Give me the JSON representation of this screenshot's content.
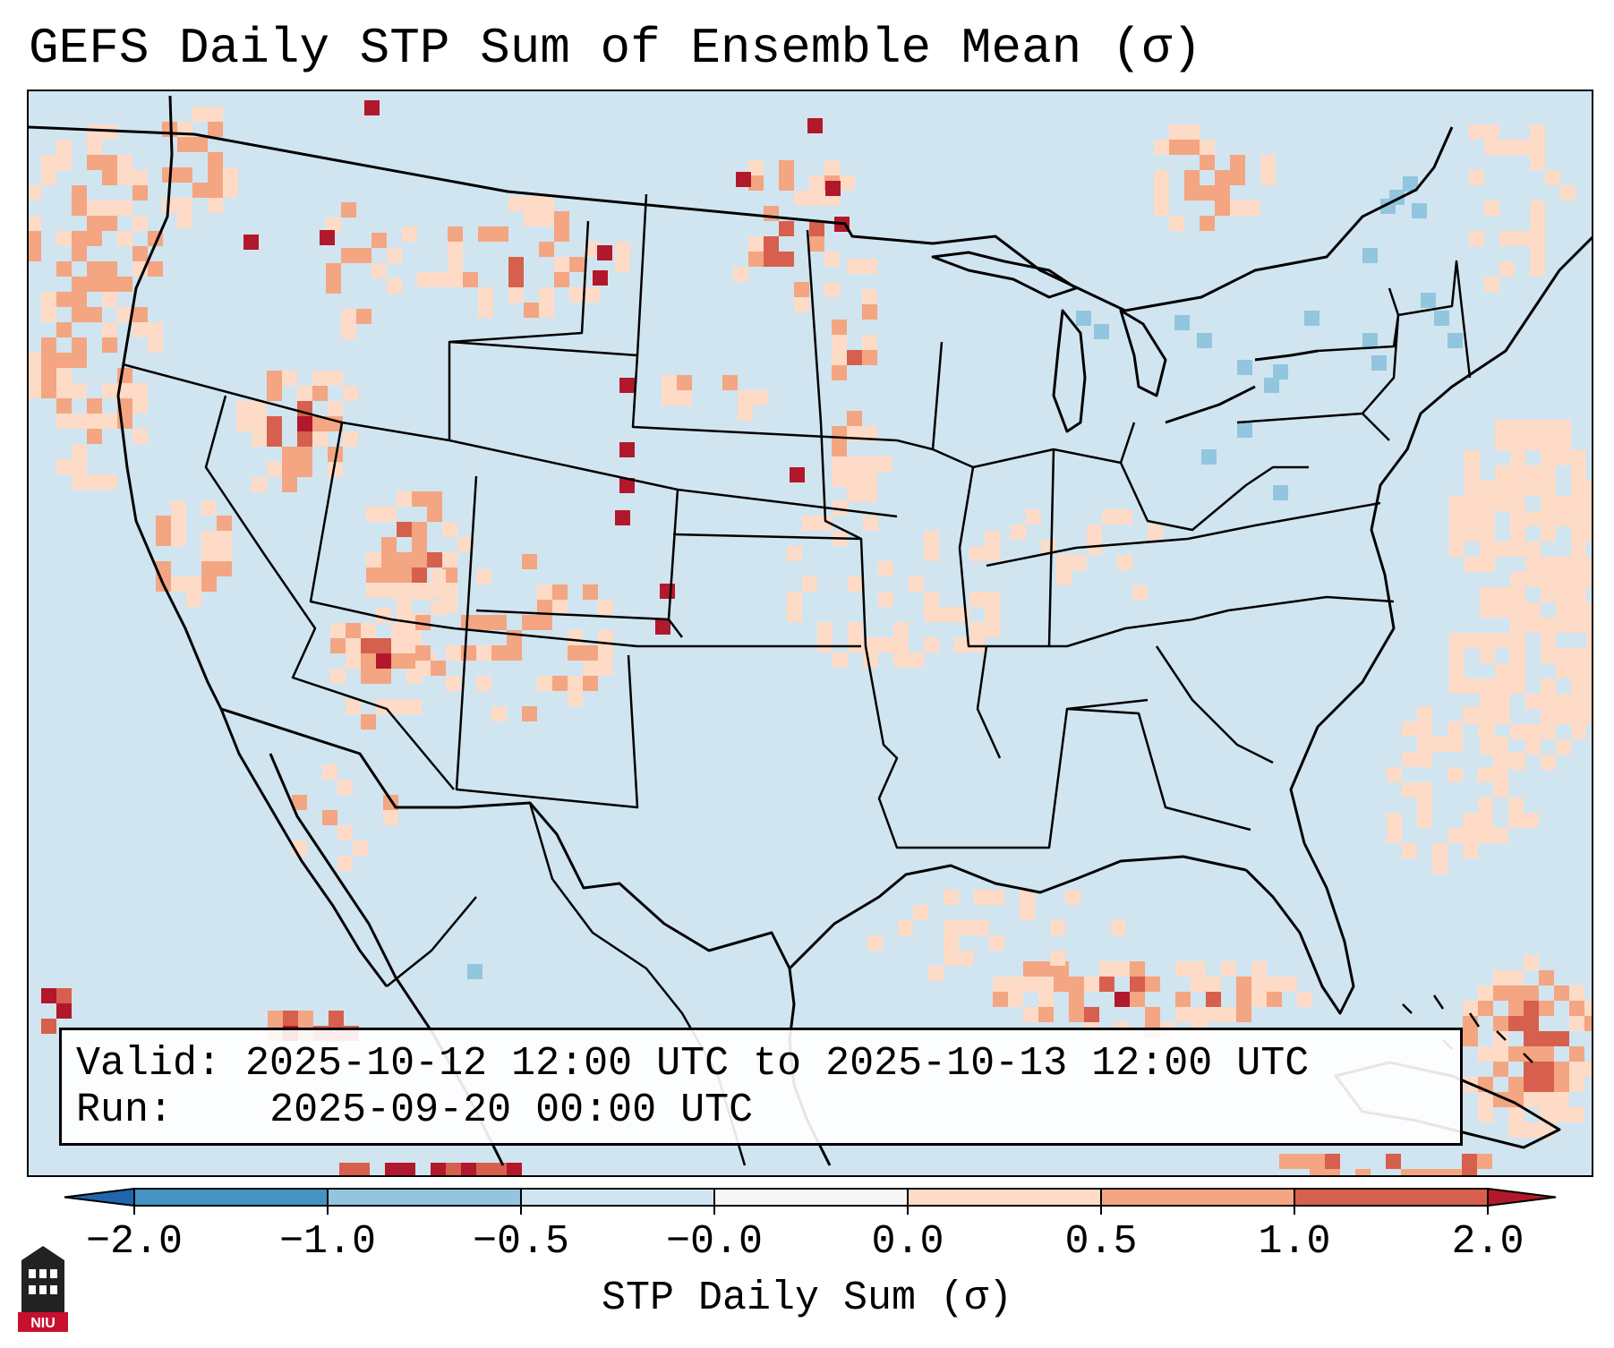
{
  "title": "GEFS Daily STP Sum of Ensemble Mean (σ)",
  "info": {
    "valid_label": "Valid:",
    "valid_value": "2025-10-12 12:00 UTC to 2025-10-13 12:00 UTC",
    "run_label": "Run:",
    "run_value": "2025-09-20 00:00 UTC"
  },
  "colorbar": {
    "label": "STP Daily Sum (σ)",
    "ticks": [
      "−2.0",
      "−1.0",
      "−0.5",
      "−0.0",
      "0.0",
      "0.5",
      "1.0",
      "2.0"
    ],
    "colors": [
      "#2166ac",
      "#4393c3",
      "#92c5de",
      "#d1e5f0",
      "#f7f7f7",
      "#fddbc7",
      "#f4a582",
      "#d6604d",
      "#b2182b"
    ]
  },
  "map": {
    "background_color": "#d1e5f0",
    "land_outline_color": "#000000",
    "region": "Contiguous United States, southern Canada, northern Mexico, Gulf of Mexico, western Atlantic and eastern Pacific"
  },
  "logo": {
    "name": "NIU",
    "text": "NIU",
    "color": "#c8102e"
  }
}
